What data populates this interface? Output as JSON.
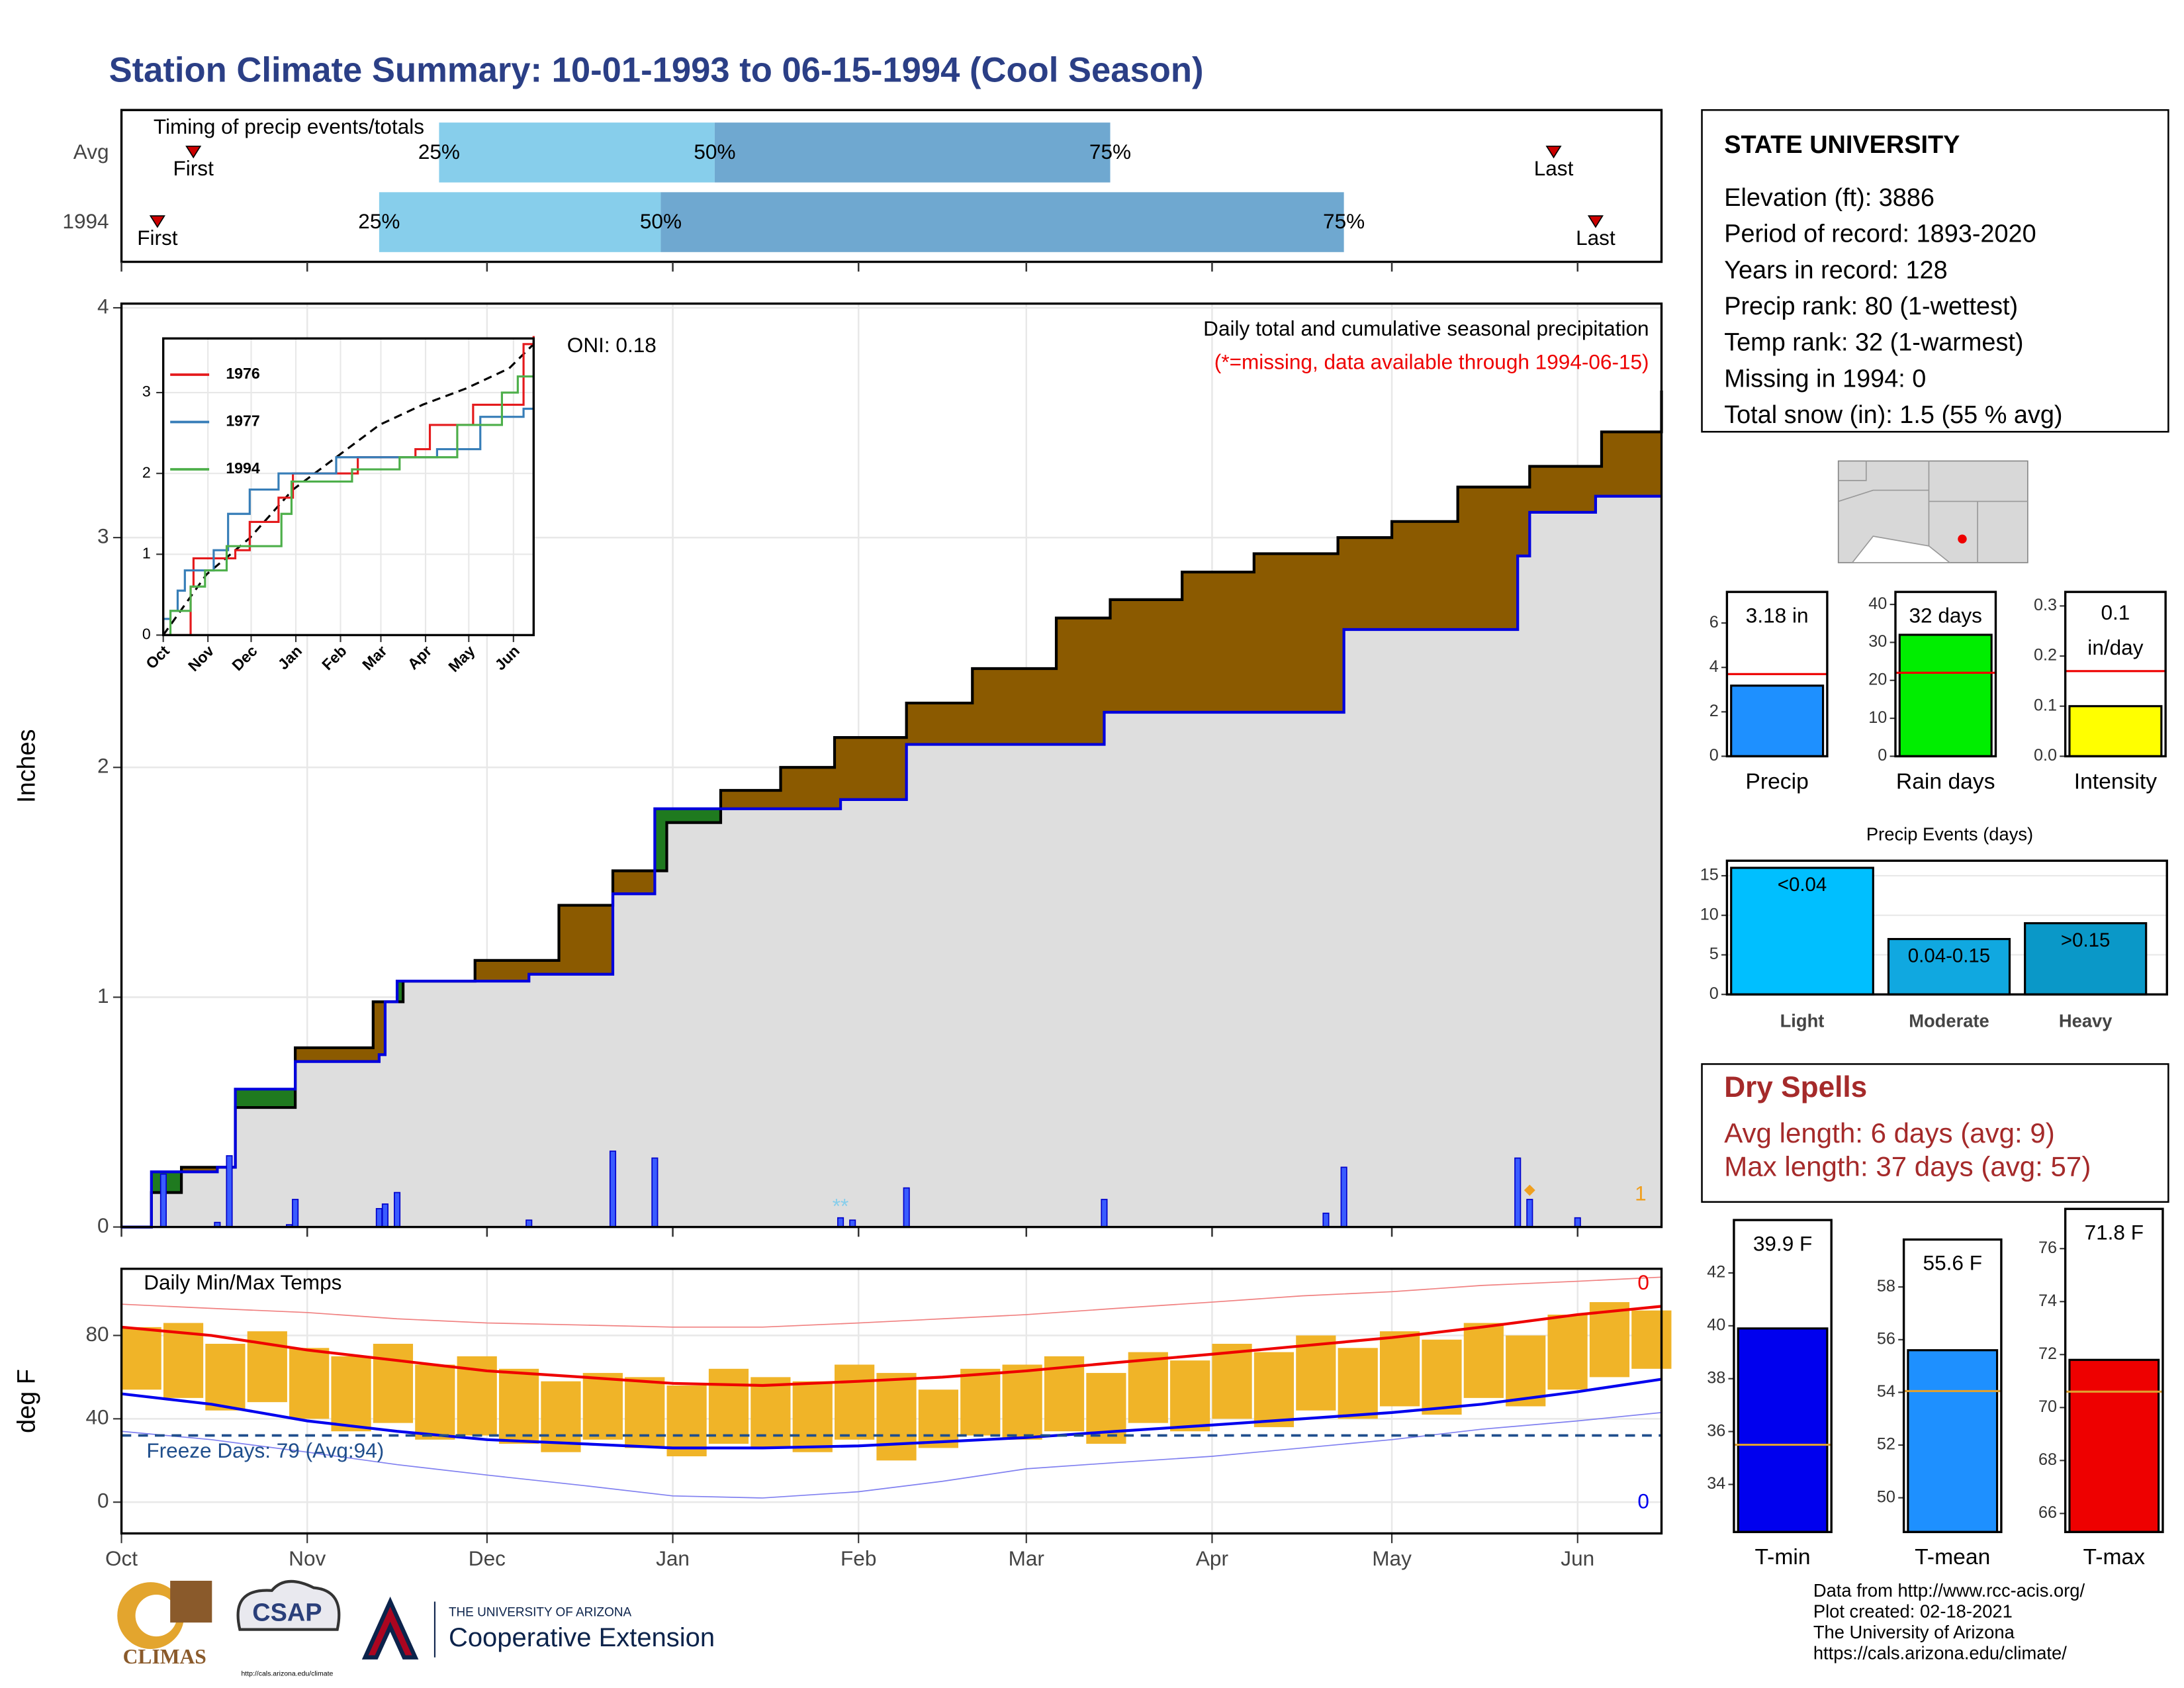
{
  "title": "Station Climate Summary: 10-01-1993 to 06-15-1994 (Cool Season)",
  "chart_data": [
    {
      "type": "timing",
      "title": "Timing of precip events/totals",
      "xlim": [
        0,
        257
      ],
      "colors": [
        "#87ceeb",
        "#6fa8d0"
      ],
      "marker_color": "#cc0000",
      "rows": [
        {
          "label": "Avg",
          "first": 12,
          "q25": 53,
          "q50": 99,
          "q75": 165,
          "last": 239,
          "first_label": "First",
          "last_label": "Last",
          "q_labels": [
            "25%",
            "50%",
            "75%"
          ]
        },
        {
          "label": "1994",
          "first": 6,
          "q25": 43,
          "q50": 90,
          "q75": 204,
          "last": 246,
          "first_label": "First",
          "last_label": "Last",
          "q_labels": [
            "25%",
            "50%",
            "75%"
          ]
        }
      ]
    },
    {
      "type": "cumulative",
      "ylabel": "Inches",
      "xlim": [
        0,
        257
      ],
      "ylim": [
        0,
        4
      ],
      "yticks": [
        0,
        1,
        2,
        3,
        4
      ],
      "oni": "ONI: 0.18",
      "subtitle": "Daily total and cumulative seasonal precipitation",
      "note": "(*=missing, data available through 1994-06-15)",
      "below_color": "#8b5a00",
      "above_color": "#1f7a1f",
      "fill_color": "#dedede",
      "line_color": "#0000dd",
      "average": {
        "x": [
          0,
          5,
          10,
          19,
          29,
          42,
          47,
          59,
          73,
          82,
          91,
          100,
          110,
          119,
          131,
          142,
          156,
          165,
          177,
          189,
          203,
          212,
          223,
          235,
          247,
          257
        ],
        "values": [
          0,
          0.15,
          0.26,
          0.52,
          0.78,
          0.98,
          1.07,
          1.16,
          1.4,
          1.55,
          1.76,
          1.9,
          2.0,
          2.13,
          2.28,
          2.43,
          2.65,
          2.73,
          2.85,
          2.93,
          3.0,
          3.07,
          3.22,
          3.31,
          3.46,
          3.64
        ]
      },
      "season": {
        "x": [
          0,
          5,
          16,
          19,
          29,
          43,
          44,
          46,
          68,
          82,
          89,
          120,
          131,
          164,
          204,
          233,
          235,
          246
        ],
        "values": [
          0,
          0.24,
          0.26,
          0.6,
          0.72,
          0.75,
          0.98,
          1.07,
          1.1,
          1.45,
          1.82,
          1.86,
          2.1,
          2.24,
          2.6,
          2.92,
          3.11,
          3.18
        ]
      },
      "daily": {
        "x": [
          7,
          16,
          18,
          28,
          29,
          43,
          44,
          46,
          68,
          82,
          89,
          120,
          122,
          131,
          164,
          201,
          204,
          233,
          235,
          243
        ],
        "values": [
          0.23,
          0.02,
          0.31,
          0.01,
          0.12,
          0.08,
          0.1,
          0.15,
          0.03,
          0.33,
          0.3,
          0.04,
          0.03,
          0.17,
          0.12,
          0.06,
          0.26,
          0.3,
          0.12,
          0.04
        ]
      },
      "missing": {
        "x": 120,
        "label": "**"
      },
      "snow": {
        "x": 235,
        "value": 0.16,
        "label": "1",
        "color": "#f0a020"
      }
    },
    {
      "type": "line",
      "xlim": [
        0,
        257
      ],
      "ylim": [
        0,
        3.67
      ],
      "yticks": [
        0,
        1,
        2,
        3
      ],
      "xticks": [
        {
          "value": 0,
          "label": "Oct"
        },
        {
          "value": 31,
          "label": "Nov"
        },
        {
          "value": 61,
          "label": "Dec"
        },
        {
          "value": 92,
          "label": "Jan"
        },
        {
          "value": 123,
          "label": "Feb"
        },
        {
          "value": 151,
          "label": "Mar"
        },
        {
          "value": 182,
          "label": "Apr"
        },
        {
          "value": 212,
          "label": "May"
        },
        {
          "value": 243,
          "label": "Jun"
        }
      ],
      "series": [
        {
          "name": "1976",
          "color": "#e41a1c",
          "x": [
            0,
            19,
            21,
            50,
            60,
            80,
            90,
            130,
            135,
            175,
            185,
            210,
            215,
            245,
            250,
            257
          ],
          "values": [
            0,
            0.6,
            0.95,
            1.05,
            1.4,
            1.7,
            2.0,
            2.0,
            2.2,
            2.3,
            2.6,
            2.6,
            2.85,
            2.85,
            3.6,
            3.7
          ]
        },
        {
          "name": "1977",
          "color": "#377eb8",
          "x": [
            0,
            5,
            10,
            15,
            35,
            45,
            60,
            80,
            115,
            120,
            180,
            190,
            220,
            250
          ],
          "values": [
            0.2,
            0.3,
            0.55,
            0.8,
            1.05,
            1.5,
            1.8,
            2.0,
            2.0,
            2.2,
            2.2,
            2.3,
            2.7,
            2.8
          ]
        },
        {
          "name": "1994",
          "color": "#4daf4a",
          "x": [
            0,
            5,
            19,
            29,
            44,
            82,
            89,
            131,
            164,
            204,
            235,
            246
          ],
          "values": [
            0,
            0.3,
            0.6,
            0.8,
            1.1,
            1.5,
            1.9,
            2.05,
            2.2,
            2.6,
            3.0,
            3.2
          ]
        }
      ],
      "average": {
        "x": [
          0,
          30,
          60,
          90,
          120,
          150,
          180,
          210,
          240,
          257
        ],
        "values": [
          0,
          0.75,
          1.2,
          1.8,
          2.2,
          2.6,
          2.85,
          3.05,
          3.3,
          3.6
        ]
      }
    },
    {
      "type": "temperature",
      "title": "Daily Min/Max Temps",
      "ylabel": "deg F",
      "xlim": [
        0,
        257
      ],
      "ylim": [
        -15,
        112
      ],
      "yticks": [
        0,
        40,
        80
      ],
      "xticks": [
        {
          "value": 0,
          "label": "Oct"
        },
        {
          "value": 31,
          "label": "Nov"
        },
        {
          "value": 61,
          "label": "Dec"
        },
        {
          "value": 92,
          "label": "Jan"
        },
        {
          "value": 123,
          "label": "Feb"
        },
        {
          "value": 151,
          "label": "Mar"
        },
        {
          "value": 182,
          "label": "Apr"
        },
        {
          "value": 212,
          "label": "May"
        },
        {
          "value": 243,
          "label": "Jun"
        }
      ],
      "x": [
        0,
        15,
        31,
        46,
        61,
        77,
        92,
        107,
        123,
        137,
        151,
        166,
        182,
        197,
        212,
        227,
        243,
        257
      ],
      "avg_max": [
        84,
        80,
        73,
        68,
        63,
        60,
        57,
        56,
        58,
        60,
        63,
        67,
        71,
        75,
        79,
        84,
        90,
        94
      ],
      "avg_min": [
        52,
        47,
        39,
        34,
        30,
        28,
        26,
        26,
        27,
        29,
        31,
        34,
        37,
        40,
        43,
        47,
        53,
        59
      ],
      "record_high": [
        95,
        93,
        91,
        88,
        86,
        85,
        84,
        84,
        86,
        88,
        90,
        93,
        96,
        99,
        101,
        104,
        106,
        108
      ],
      "record_low": [
        34,
        30,
        24,
        18,
        13,
        8,
        3,
        2,
        5,
        10,
        16,
        19,
        22,
        26,
        30,
        35,
        39,
        43
      ],
      "daily": {
        "x": [
          0,
          7,
          14,
          21,
          28,
          35,
          42,
          49,
          56,
          63,
          70,
          77,
          84,
          91,
          98,
          105,
          112,
          119,
          126,
          133,
          140,
          147,
          154,
          161,
          168,
          175,
          182,
          189,
          196,
          203,
          210,
          217,
          224,
          231,
          238,
          245,
          252
        ],
        "max": [
          84,
          86,
          76,
          82,
          74,
          70,
          76,
          66,
          70,
          64,
          58,
          62,
          60,
          56,
          64,
          60,
          58,
          66,
          62,
          54,
          64,
          66,
          70,
          62,
          72,
          68,
          76,
          72,
          80,
          74,
          82,
          78,
          86,
          80,
          90,
          96,
          92
        ],
        "min": [
          54,
          50,
          44,
          48,
          40,
          34,
          38,
          30,
          32,
          28,
          24,
          30,
          26,
          22,
          28,
          26,
          24,
          30,
          20,
          26,
          32,
          30,
          34,
          28,
          38,
          34,
          40,
          36,
          44,
          40,
          46,
          42,
          50,
          46,
          54,
          60,
          64
        ]
      },
      "freeze": 32,
      "freeze_label": "Freeze Days: 79 (Avg:94)",
      "record_high_count": 0,
      "record_low_count": 0,
      "colors": {
        "bars": "#f0b428",
        "avg_max": "#ee0000",
        "avg_min": "#0000ee",
        "record_high": "#f08080",
        "record_low": "#8080f0",
        "freeze": "#1f4e8c"
      }
    },
    {
      "type": "stat_bars",
      "avg_color": "#ee0000",
      "panels": [
        {
          "category": "Precip",
          "value": 3.18,
          "value_label": "3.18 in",
          "average": 3.7,
          "ylim": [
            0,
            7.4
          ],
          "yticks": [
            0,
            2,
            4,
            6
          ],
          "color": "#1e90ff"
        },
        {
          "category": "Rain days",
          "value": 32,
          "value_label": "32 days",
          "average": 22,
          "ylim": [
            0,
            43.3
          ],
          "yticks": [
            0,
            10,
            20,
            30,
            40
          ],
          "color": "#00ee00"
        },
        {
          "category": "Intensity",
          "value": 0.1,
          "value_label": "0.1",
          "unit": "in/day",
          "average": 0.17,
          "ylim": [
            0,
            0.328
          ],
          "yticks": [
            {
              "value": 0,
              "label": "0.0"
            },
            0.1,
            0.2,
            0.3
          ],
          "color": "#ffff00"
        }
      ]
    },
    {
      "type": "bar",
      "title": "Precip Events (days)",
      "categories": [
        "Light",
        "Moderate",
        "Heavy"
      ],
      "thresholds": [
        "<0.04",
        "0.04-0.15",
        ">0.15"
      ],
      "values": [
        16,
        7,
        9
      ],
      "colors": [
        "#00bfff",
        "#10a8e0",
        "#0a98c8"
      ],
      "ylim": [
        0,
        16.9
      ],
      "yticks": [
        0,
        5,
        10,
        15
      ]
    },
    {
      "type": "stat_bars",
      "avg_color": "#e0a030",
      "panels": [
        {
          "category": "T-min",
          "value": 39.9,
          "value_label": "39.9 F",
          "average": 35.5,
          "ylim": [
            32.2,
            44
          ],
          "yticks": [
            34,
            36,
            38,
            40,
            42
          ],
          "color": "#0000ee"
        },
        {
          "category": "T-mean",
          "value": 55.6,
          "value_label": "55.6 F",
          "average": 54.05,
          "ylim": [
            48.7,
            59.8
          ],
          "yticks": [
            50,
            52,
            54,
            56,
            58
          ],
          "color": "#1e90ff"
        },
        {
          "category": "T-max",
          "value": 71.8,
          "value_label": "71.8 F",
          "average": 70.6,
          "ylim": [
            65.3,
            77.5
          ],
          "yticks": [
            66,
            68,
            70,
            72,
            74,
            76
          ],
          "color": "#ee0000"
        }
      ]
    }
  ],
  "station": {
    "name": "STATE UNIVERSITY",
    "lines": [
      "Elevation (ft): 3886",
      "Period of record: 1893-2020",
      "Years in record: 128",
      "Precip rank: 80 (1-wettest)",
      "Temp rank: 32 (1-warmest)",
      "Missing in 1994: 0",
      "Total snow (in): 1.5 (55 % avg)"
    ]
  },
  "dry_spells": {
    "title": "Dry Spells",
    "lines": [
      "Avg length: 6 days (avg: 9)",
      "Max length: 37 days (avg: 57)"
    ]
  },
  "credits": [
    "Data from http://www.rcc-acis.org/",
    "Plot created: 02-18-2021",
    "The University of Arizona",
    "https://cals.arizona.edu/climate/"
  ],
  "logos": {
    "climas": "CLIMAS",
    "csap": "CSAP",
    "csap_url": "http://cals.arizona.edu/climate",
    "university": "THE UNIVERSITY OF ARIZONA",
    "extension": "Cooperative Extension"
  }
}
